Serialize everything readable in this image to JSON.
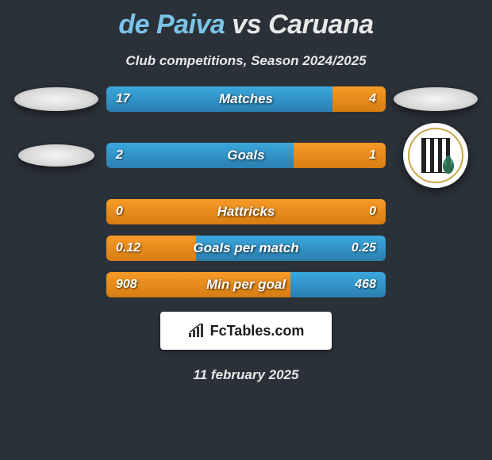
{
  "header": {
    "player1": "de Paiva",
    "vs": "vs",
    "player2": "Caruana",
    "subtitle": "Club competitions, Season 2024/2025"
  },
  "stats": [
    {
      "label": "Matches",
      "left_value": "17",
      "right_value": "4",
      "left_pct": 81,
      "right_pct": 19,
      "left_color_a": "#3aa8dc",
      "left_color_b": "#2b7fb0",
      "right_color_a": "#f79a27",
      "right_color_b": "#d77d12"
    },
    {
      "label": "Goals",
      "left_value": "2",
      "right_value": "1",
      "left_pct": 67,
      "right_pct": 33,
      "left_color_a": "#3aa8dc",
      "left_color_b": "#2b7fb0",
      "right_color_a": "#f79a27",
      "right_color_b": "#d77d12"
    },
    {
      "label": "Hattricks",
      "left_value": "0",
      "right_value": "0",
      "left_pct": 50,
      "right_pct": 50,
      "left_color_a": "#f79a27",
      "left_color_b": "#d77d12",
      "right_color_a": "#f79a27",
      "right_color_b": "#d77d12"
    },
    {
      "label": "Goals per match",
      "left_value": "0.12",
      "right_value": "0.25",
      "left_pct": 32,
      "right_pct": 68,
      "left_color_a": "#f79a27",
      "left_color_b": "#d77d12",
      "right_color_a": "#3aa8dc",
      "right_color_b": "#2b7fb0"
    },
    {
      "label": "Min per goal",
      "left_value": "908",
      "right_value": "468",
      "left_pct": 66,
      "right_pct": 34,
      "left_color_a": "#f79a27",
      "left_color_b": "#d77d12",
      "right_color_a": "#3aa8dc",
      "right_color_b": "#2b7fb0"
    }
  ],
  "footer": {
    "logo_text": "FcTables.com",
    "date": "11 february 2025"
  },
  "colors": {
    "background": "#2a3138",
    "title_accent": "#7cc4e8",
    "text_light": "#e8e8e8"
  }
}
